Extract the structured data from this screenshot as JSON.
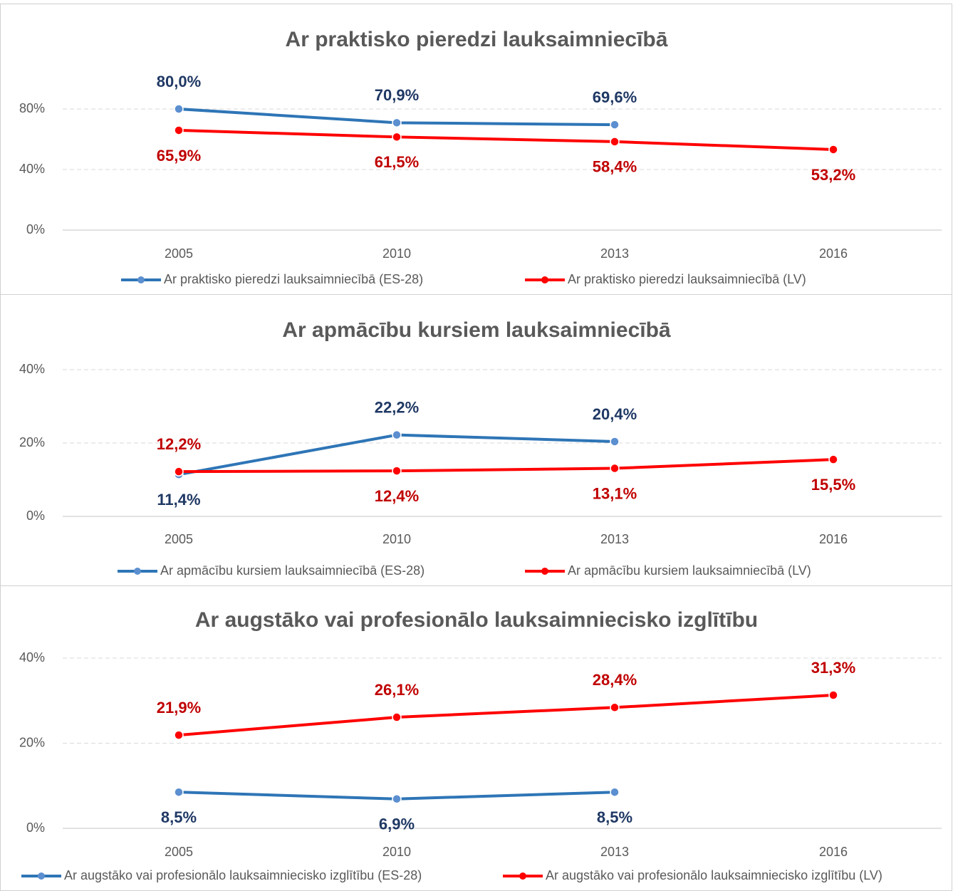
{
  "chart_data": [
    {
      "type": "line",
      "title": "Ar praktisko pieredzi lauksaimniecībā",
      "categories": [
        "2005",
        "2010",
        "2013",
        "2016"
      ],
      "ylim": [
        0,
        80
      ],
      "yticks": [
        {
          "value": 0,
          "label": "0%"
        },
        {
          "value": 40,
          "label": "40%"
        },
        {
          "value": 80,
          "label": "80%"
        }
      ],
      "grid": true,
      "series": [
        {
          "name": "Ar praktisko pieredzi lauksaimniecībā (ES-28)",
          "color": "#2e75b6",
          "marker_color": "#5b8fd0",
          "label_color": "#1f3864",
          "values": [
            80.0,
            70.9,
            69.6,
            null
          ],
          "value_labels": [
            "80,0%",
            "70,9%",
            "69,6%",
            null
          ]
        },
        {
          "name": "Ar praktisko pieredzi lauksaimniecībā (LV)",
          "color": "#ff0000",
          "marker_color": "#ff0000",
          "label_color": "#c00000",
          "values": [
            65.9,
            61.5,
            58.4,
            53.2
          ],
          "value_labels": [
            "65,9%",
            "61,5%",
            "58,4%",
            "53,2%"
          ]
        }
      ]
    },
    {
      "type": "line",
      "title": "Ar apmācību kursiem lauksaimniecībā",
      "categories": [
        "2005",
        "2010",
        "2013",
        "2016"
      ],
      "ylim": [
        0,
        40
      ],
      "yticks": [
        {
          "value": 0,
          "label": "0%"
        },
        {
          "value": 20,
          "label": "20%"
        },
        {
          "value": 40,
          "label": "40%"
        }
      ],
      "grid": true,
      "series": [
        {
          "name": "Ar apmācību kursiem lauksaimniecībā (ES-28)",
          "color": "#2e75b6",
          "marker_color": "#5b8fd0",
          "label_color": "#1f3864",
          "values": [
            11.4,
            22.2,
            20.4,
            null
          ],
          "value_labels": [
            "11,4%",
            "22,2%",
            "20,4%",
            null
          ]
        },
        {
          "name": "Ar apmācību kursiem lauksaimniecībā (LV)",
          "color": "#ff0000",
          "marker_color": "#ff0000",
          "label_color": "#c00000",
          "values": [
            12.2,
            12.4,
            13.1,
            15.5
          ],
          "value_labels": [
            "12,2%",
            "12,4%",
            "13,1%",
            "15,5%"
          ]
        }
      ]
    },
    {
      "type": "line",
      "title": "Ar augstāko vai profesionālo lauksaimniecisko izglītību",
      "categories": [
        "2005",
        "2010",
        "2013",
        "2016"
      ],
      "ylim": [
        0,
        40
      ],
      "yticks": [
        {
          "value": 0,
          "label": "0%"
        },
        {
          "value": 20,
          "label": "20%"
        },
        {
          "value": 40,
          "label": "40%"
        }
      ],
      "grid": true,
      "series": [
        {
          "name": "Ar augstāko vai profesionālo lauksaimniecisko izglītību (ES-28)",
          "color": "#2e75b6",
          "marker_color": "#5b8fd0",
          "label_color": "#1f3864",
          "values": [
            8.5,
            6.9,
            8.5,
            null
          ],
          "value_labels": [
            "8,5%",
            "6,9%",
            "8,5%",
            null
          ]
        },
        {
          "name": "Ar augstāko vai profesionālo lauksaimniecisko izglītību (LV)",
          "color": "#ff0000",
          "marker_color": "#ff0000",
          "label_color": "#c00000",
          "values": [
            21.9,
            26.1,
            28.4,
            31.3
          ],
          "value_labels": [
            "21,9%",
            "26,1%",
            "28,4%",
            "31,3%"
          ]
        }
      ]
    }
  ]
}
